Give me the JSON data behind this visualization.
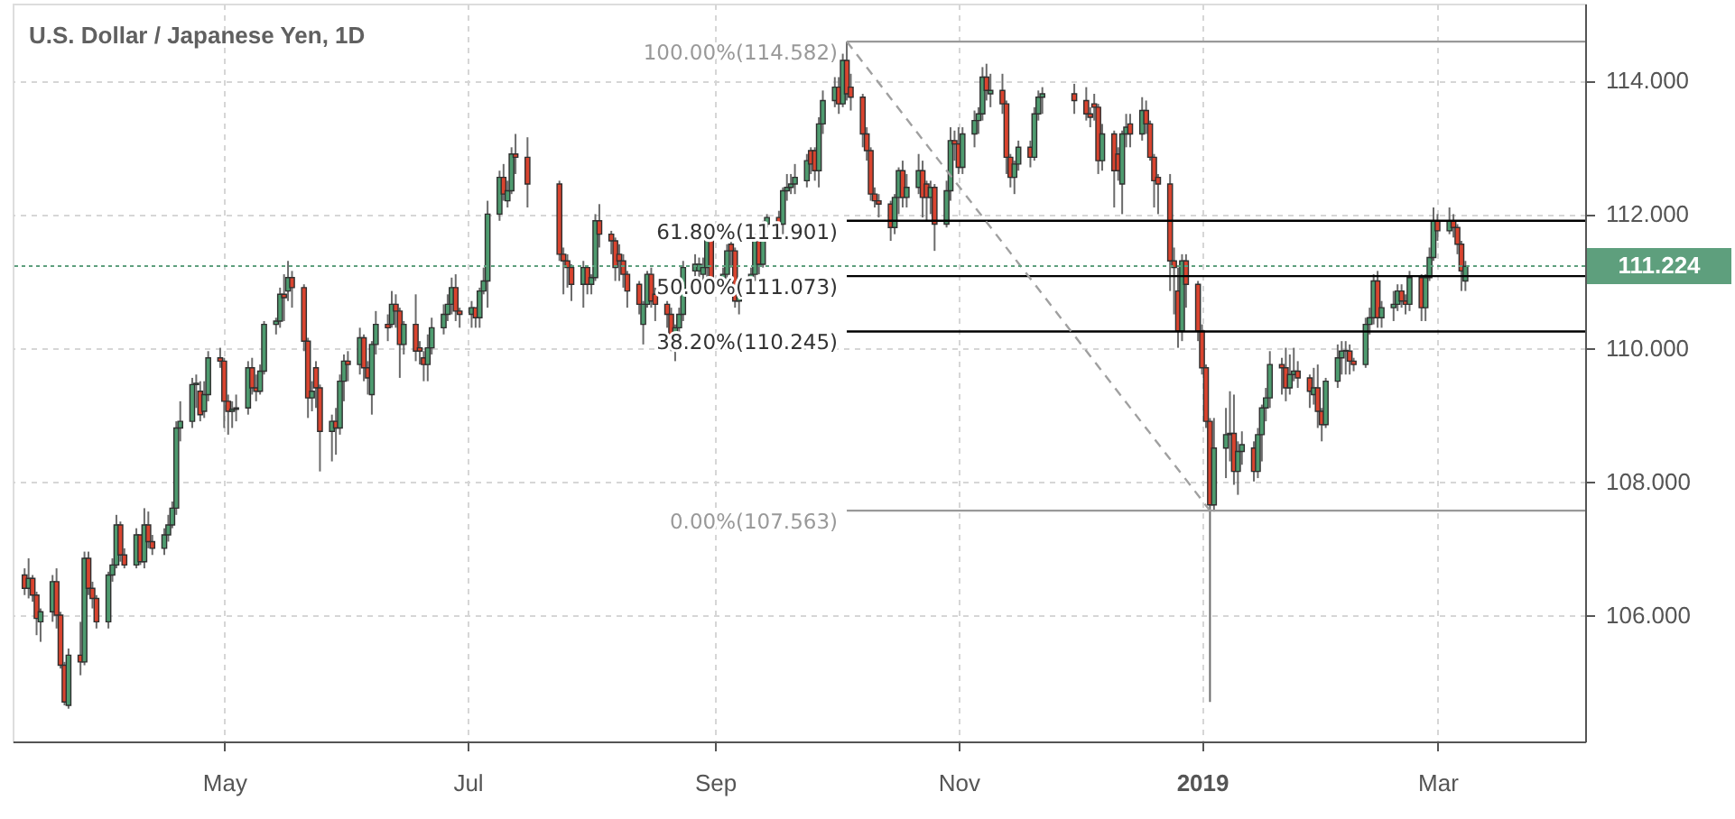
{
  "chart_data": {
    "type": "candlestick",
    "title": "U.S. Dollar / Japanese Yen, 1D",
    "xlim": [
      "2018-03-09",
      "2019-04-07"
    ],
    "xticks": [
      {
        "value": "2018-05-01",
        "label": "May"
      },
      {
        "value": "2018-07-01",
        "label": "Jul"
      },
      {
        "value": "2018-09-01",
        "label": "Sep"
      },
      {
        "value": "2018-11-01",
        "label": "Nov"
      },
      {
        "value": "2019-01-01",
        "label": "2019"
      },
      {
        "value": "2019-03-01",
        "label": "Mar"
      }
    ],
    "ylim": [
      104.11,
      115.15
    ],
    "yticks": [
      {
        "value": 106,
        "label": "106.000"
      },
      {
        "value": 108,
        "label": "108.000"
      },
      {
        "value": 110,
        "label": "110.000"
      },
      {
        "value": 112,
        "label": "112.000"
      },
      {
        "value": 114,
        "label": "114.000"
      }
    ],
    "grid": true,
    "series": [
      {
        "x": [
          "2018-03-12",
          "2018-03-13",
          "2018-03-14",
          "2018-03-15",
          "2018-03-16",
          "2018-03-19",
          "2018-03-20",
          "2018-03-21",
          "2018-03-22",
          "2018-03-23",
          "2018-03-26",
          "2018-03-27",
          "2018-03-28",
          "2018-03-29",
          "2018-03-30",
          "2018-04-02",
          "2018-04-03",
          "2018-04-04",
          "2018-04-05",
          "2018-04-06",
          "2018-04-09",
          "2018-04-10",
          "2018-04-11",
          "2018-04-12",
          "2018-04-13",
          "2018-04-16",
          "2018-04-17",
          "2018-04-18",
          "2018-04-19",
          "2018-04-20",
          "2018-04-23",
          "2018-04-24",
          "2018-04-25",
          "2018-04-26",
          "2018-04-27",
          "2018-04-30",
          "2018-05-01",
          "2018-05-02",
          "2018-05-03",
          "2018-05-04",
          "2018-05-07",
          "2018-05-08",
          "2018-05-09",
          "2018-05-10",
          "2018-05-11",
          "2018-05-14",
          "2018-05-15",
          "2018-05-16",
          "2018-05-17",
          "2018-05-18",
          "2018-05-21",
          "2018-05-22",
          "2018-05-23",
          "2018-05-24",
          "2018-05-25",
          "2018-05-28",
          "2018-05-29",
          "2018-05-30",
          "2018-05-31",
          "2018-06-01",
          "2018-06-04",
          "2018-06-05",
          "2018-06-06",
          "2018-06-07",
          "2018-06-08",
          "2018-06-11",
          "2018-06-12",
          "2018-06-13",
          "2018-06-14",
          "2018-06-15",
          "2018-06-18",
          "2018-06-19",
          "2018-06-20",
          "2018-06-21",
          "2018-06-22",
          "2018-06-25",
          "2018-06-26",
          "2018-06-27",
          "2018-06-28",
          "2018-06-29",
          "2018-07-02",
          "2018-07-03",
          "2018-07-04",
          "2018-07-05",
          "2018-07-06",
          "2018-07-09",
          "2018-07-10",
          "2018-07-11",
          "2018-07-12",
          "2018-07-13",
          "2018-07-16",
          "2018-07-24",
          "2018-07-25",
          "2018-07-26",
          "2018-07-27",
          "2018-07-30",
          "2018-07-31",
          "2018-08-01",
          "2018-08-02",
          "2018-08-03",
          "2018-08-06",
          "2018-08-07",
          "2018-08-08",
          "2018-08-09",
          "2018-08-10",
          "2018-08-13",
          "2018-08-14",
          "2018-08-15",
          "2018-08-16",
          "2018-08-17",
          "2018-08-20",
          "2018-08-21",
          "2018-08-22",
          "2018-08-23",
          "2018-08-24",
          "2018-08-27",
          "2018-08-28",
          "2018-08-29",
          "2018-08-30",
          "2018-08-31",
          "2018-09-03",
          "2018-09-04",
          "2018-09-05",
          "2018-09-06",
          "2018-09-07",
          "2018-09-10",
          "2018-09-11",
          "2018-09-12",
          "2018-09-13",
          "2018-09-14",
          "2018-09-17",
          "2018-09-18",
          "2018-09-19",
          "2018-09-20",
          "2018-09-21",
          "2018-09-24",
          "2018-09-25",
          "2018-09-26",
          "2018-09-27",
          "2018-09-28",
          "2018-10-01",
          "2018-10-02",
          "2018-10-03",
          "2018-10-04",
          "2018-10-05",
          "2018-10-08",
          "2018-10-09",
          "2018-10-10",
          "2018-10-11",
          "2018-10-12",
          "2018-10-15",
          "2018-10-16",
          "2018-10-17",
          "2018-10-18",
          "2018-10-19",
          "2018-10-22",
          "2018-10-23",
          "2018-10-24",
          "2018-10-25",
          "2018-10-26",
          "2018-10-29",
          "2018-10-30",
          "2018-10-31",
          "2018-11-01",
          "2018-11-02",
          "2018-11-05",
          "2018-11-06",
          "2018-11-07",
          "2018-11-08",
          "2018-11-09",
          "2018-11-12",
          "2018-11-13",
          "2018-11-14",
          "2018-11-15",
          "2018-11-16",
          "2018-11-19",
          "2018-11-20",
          "2018-11-21",
          "2018-11-22",
          "2018-11-30",
          "2018-12-03",
          "2018-12-04",
          "2018-12-05",
          "2018-12-06",
          "2018-12-07",
          "2018-12-10",
          "2018-12-11",
          "2018-12-12",
          "2018-12-13",
          "2018-12-14",
          "2018-12-17",
          "2018-12-18",
          "2018-12-19",
          "2018-12-20",
          "2018-12-21",
          "2018-12-24",
          "2018-12-25",
          "2018-12-26",
          "2018-12-27",
          "2018-12-28",
          "2018-12-31",
          "2019-01-01",
          "2019-01-02",
          "2019-01-03",
          "2019-01-04",
          "2019-01-07",
          "2019-01-08",
          "2019-01-09",
          "2019-01-10",
          "2019-01-11",
          "2019-01-14",
          "2019-01-15",
          "2019-01-16",
          "2019-01-17",
          "2019-01-18",
          "2019-01-21",
          "2019-01-22",
          "2019-01-23",
          "2019-01-24",
          "2019-01-25",
          "2019-01-28",
          "2019-01-29",
          "2019-01-30",
          "2019-01-31",
          "2019-02-01",
          "2019-02-04",
          "2019-02-05",
          "2019-02-06",
          "2019-02-07",
          "2019-02-08",
          "2019-02-11",
          "2019-02-12",
          "2019-02-13",
          "2019-02-14",
          "2019-02-15",
          "2019-02-18",
          "2019-02-19",
          "2019-02-20",
          "2019-02-21",
          "2019-02-22",
          "2019-02-25",
          "2019-02-26",
          "2019-02-27",
          "2019-02-28",
          "2019-03-01",
          "2019-03-04",
          "2019-03-05",
          "2019-03-06",
          "2019-03-07",
          "2019-03-08"
        ],
        "ohlc": [
          [
            106.6,
            106.7,
            106.3,
            106.4
          ],
          [
            106.4,
            106.85,
            106.25,
            106.55
          ],
          [
            106.55,
            106.6,
            106.2,
            106.3
          ],
          [
            106.3,
            106.35,
            105.7,
            105.95
          ],
          [
            105.9,
            106.1,
            105.6,
            106.05
          ],
          [
            106.05,
            106.6,
            105.9,
            106.5
          ],
          [
            106.5,
            106.7,
            105.8,
            106.0
          ],
          [
            106.0,
            106.05,
            105.2,
            105.25
          ],
          [
            105.25,
            105.3,
            104.65,
            104.7
          ],
          [
            104.65,
            105.5,
            104.6,
            105.4
          ],
          [
            105.4,
            105.9,
            105.1,
            105.3
          ],
          [
            105.3,
            106.95,
            105.25,
            106.85
          ],
          [
            106.85,
            106.95,
            106.3,
            106.4
          ],
          [
            106.4,
            106.5,
            106.1,
            106.25
          ],
          [
            106.25,
            106.3,
            105.8,
            105.9
          ],
          [
            105.9,
            106.65,
            105.8,
            106.6
          ],
          [
            106.6,
            106.85,
            106.5,
            106.75
          ],
          [
            106.75,
            107.5,
            106.7,
            107.35
          ],
          [
            107.35,
            107.4,
            106.8,
            106.9
          ],
          [
            106.9,
            107.0,
            106.7,
            106.75
          ],
          [
            106.75,
            107.3,
            106.7,
            107.2
          ],
          [
            107.2,
            107.2,
            106.75,
            106.8
          ],
          [
            106.8,
            107.6,
            106.7,
            107.35
          ],
          [
            107.35,
            107.55,
            107.0,
            107.1
          ],
          [
            107.1,
            107.2,
            106.9,
            107.0
          ],
          [
            107.0,
            107.3,
            106.9,
            107.2
          ],
          [
            107.2,
            107.5,
            107.1,
            107.35
          ],
          [
            107.35,
            107.7,
            107.3,
            107.6
          ],
          [
            107.6,
            108.9,
            107.5,
            108.8
          ],
          [
            108.8,
            109.2,
            108.6,
            108.9
          ],
          [
            108.9,
            109.55,
            108.8,
            109.45
          ],
          [
            109.45,
            109.6,
            109.1,
            109.47
          ],
          [
            109.35,
            109.5,
            108.9,
            109.0
          ],
          [
            109.05,
            109.5,
            108.95,
            109.3
          ],
          [
            109.3,
            109.95,
            109.2,
            109.85
          ],
          [
            109.85,
            110.0,
            109.7,
            109.8
          ],
          [
            109.8,
            109.85,
            108.8,
            109.2
          ],
          [
            109.2,
            109.3,
            108.7,
            109.05
          ],
          [
            109.05,
            109.2,
            108.8,
            109.08
          ],
          [
            109.08,
            109.3,
            108.9,
            109.1
          ],
          [
            109.1,
            109.8,
            109.0,
            109.7
          ],
          [
            109.7,
            109.85,
            109.3,
            109.4
          ],
          [
            109.4,
            109.6,
            109.2,
            109.35
          ],
          [
            109.35,
            109.75,
            109.3,
            109.65
          ],
          [
            109.65,
            110.4,
            109.6,
            110.35
          ],
          [
            110.35,
            110.45,
            110.2,
            110.4
          ],
          [
            110.4,
            110.9,
            110.3,
            110.8
          ],
          [
            110.8,
            111.1,
            110.4,
            110.75
          ],
          [
            110.85,
            111.3,
            110.7,
            111.05
          ],
          [
            111.05,
            111.15,
            110.6,
            110.9
          ],
          [
            110.9,
            110.95,
            109.95,
            110.1
          ],
          [
            110.1,
            110.15,
            108.95,
            109.25
          ],
          [
            109.25,
            109.5,
            109.05,
            109.35
          ],
          [
            109.7,
            109.8,
            109.1,
            109.4
          ],
          [
            109.4,
            109.45,
            108.15,
            108.75
          ],
          [
            108.75,
            109.0,
            108.3,
            108.9
          ],
          [
            108.9,
            109.1,
            108.4,
            108.8
          ],
          [
            108.8,
            109.6,
            108.7,
            109.5
          ],
          [
            109.5,
            109.9,
            109.2,
            109.8
          ],
          [
            109.8,
            109.95,
            109.5,
            109.75
          ],
          [
            109.75,
            110.3,
            109.6,
            110.15
          ],
          [
            110.15,
            110.2,
            109.5,
            109.7
          ],
          [
            109.7,
            109.8,
            109.3,
            109.55
          ],
          [
            109.3,
            110.1,
            109.0,
            110.05
          ],
          [
            110.05,
            110.55,
            109.9,
            110.35
          ],
          [
            110.35,
            110.5,
            110.1,
            110.3
          ],
          [
            110.35,
            110.85,
            110.3,
            110.65
          ],
          [
            110.65,
            110.8,
            110.3,
            110.55
          ],
          [
            110.55,
            110.6,
            109.55,
            110.05
          ],
          [
            110.05,
            110.4,
            109.9,
            110.35
          ],
          [
            110.35,
            110.8,
            109.8,
            109.95
          ],
          [
            110.0,
            110.1,
            109.75,
            109.95
          ],
          [
            109.85,
            109.95,
            109.5,
            109.75
          ],
          [
            109.75,
            110.2,
            109.5,
            110.0
          ],
          [
            110.0,
            110.45,
            109.9,
            110.3
          ],
          [
            110.3,
            110.65,
            110.2,
            110.5
          ],
          [
            110.5,
            110.8,
            110.4,
            110.65
          ],
          [
            110.65,
            111.05,
            110.5,
            110.9
          ],
          [
            110.9,
            111.1,
            110.4,
            110.55
          ],
          [
            110.55,
            110.6,
            110.3,
            110.5
          ],
          [
            110.5,
            110.7,
            110.3,
            110.6
          ],
          [
            110.6,
            110.6,
            110.3,
            110.45
          ],
          [
            110.45,
            110.9,
            110.3,
            110.85
          ],
          [
            110.85,
            111.2,
            110.8,
            111.0
          ],
          [
            111.0,
            112.2,
            110.6,
            112.0
          ],
          [
            112.0,
            112.65,
            111.9,
            112.55
          ],
          [
            112.55,
            112.75,
            112.2,
            112.3
          ],
          [
            112.2,
            112.5,
            112.1,
            112.35
          ],
          [
            112.35,
            113.0,
            112.3,
            112.9
          ],
          [
            112.9,
            113.2,
            112.6,
            112.85
          ],
          [
            112.85,
            113.15,
            112.1,
            112.45
          ],
          [
            112.45,
            112.5,
            111.3,
            111.4
          ],
          [
            111.4,
            111.5,
            110.8,
            111.3
          ],
          [
            111.3,
            111.4,
            110.9,
            111.2
          ],
          [
            111.2,
            111.25,
            110.7,
            110.95
          ],
          [
            110.95,
            111.3,
            110.6,
            111.2
          ],
          [
            111.2,
            111.2,
            110.8,
            110.95
          ],
          [
            110.95,
            111.1,
            110.8,
            111.05
          ],
          [
            111.05,
            112.0,
            111.0,
            111.9
          ],
          [
            111.9,
            112.15,
            111.5,
            111.7
          ],
          [
            111.7,
            111.75,
            111.4,
            111.6
          ],
          [
            111.6,
            111.65,
            111.0,
            111.2
          ],
          [
            111.4,
            111.55,
            111.0,
            111.3
          ],
          [
            111.3,
            111.4,
            110.9,
            111.1
          ],
          [
            111.1,
            111.15,
            110.6,
            110.85
          ],
          [
            110.95,
            111.0,
            110.5,
            110.65
          ],
          [
            110.35,
            110.7,
            110.05,
            110.65
          ],
          [
            110.65,
            111.15,
            110.6,
            111.1
          ],
          [
            111.1,
            111.2,
            110.6,
            110.7
          ],
          [
            110.8,
            110.9,
            110.4,
            110.65
          ],
          [
            110.65,
            110.7,
            110.3,
            110.5
          ],
          [
            110.5,
            110.6,
            109.95,
            110.05
          ],
          [
            110.05,
            110.35,
            109.8,
            110.3
          ],
          [
            110.3,
            110.6,
            110.2,
            110.5
          ],
          [
            110.5,
            111.3,
            110.4,
            111.2
          ],
          [
            111.15,
            111.4,
            111.0,
            111.25
          ],
          [
            111.15,
            111.35,
            111.0,
            111.25
          ],
          [
            111.1,
            111.35,
            111.0,
            111.2
          ],
          [
            111.2,
            111.75,
            111.0,
            111.7
          ],
          [
            111.7,
            111.75,
            110.8,
            111.0
          ],
          [
            111.0,
            111.2,
            110.85,
            111.1
          ],
          [
            111.1,
            111.55,
            111.0,
            111.45
          ],
          [
            111.55,
            111.6,
            111.2,
            111.45
          ],
          [
            111.45,
            111.5,
            110.6,
            110.7
          ],
          [
            110.7,
            111.05,
            110.5,
            111.0
          ],
          [
            111.0,
            111.2,
            110.9,
            111.1
          ],
          [
            111.1,
            111.7,
            111.0,
            111.6
          ],
          [
            111.6,
            111.65,
            111.1,
            111.25
          ],
          [
            111.25,
            111.9,
            111.2,
            111.85
          ],
          [
            111.85,
            112.0,
            111.8,
            111.95
          ],
          [
            111.95,
            112.05,
            111.7,
            111.85
          ],
          [
            111.85,
            112.4,
            111.7,
            112.35
          ],
          [
            112.35,
            112.6,
            112.2,
            112.4
          ],
          [
            112.4,
            112.6,
            112.3,
            112.45
          ],
          [
            112.45,
            112.75,
            112.3,
            112.55
          ],
          [
            112.5,
            112.9,
            112.4,
            112.8
          ],
          [
            112.95,
            113.0,
            112.6,
            112.75
          ],
          [
            112.95,
            113.0,
            112.5,
            112.65
          ],
          [
            112.65,
            113.45,
            112.4,
            113.35
          ],
          [
            113.35,
            113.85,
            113.2,
            113.7
          ],
          [
            113.7,
            114.05,
            113.6,
            113.9
          ],
          [
            113.9,
            114.05,
            113.5,
            113.65
          ],
          [
            113.65,
            114.4,
            113.6,
            114.3
          ],
          [
            114.3,
            114.582,
            113.7,
            113.8
          ],
          [
            113.9,
            114.1,
            113.55,
            113.75
          ],
          [
            113.75,
            113.8,
            113.0,
            113.2
          ],
          [
            113.2,
            113.3,
            112.8,
            112.95
          ],
          [
            112.95,
            113.0,
            112.2,
            112.3
          ],
          [
            112.3,
            112.4,
            112.1,
            112.2
          ],
          [
            112.2,
            112.3,
            111.95,
            112.15
          ],
          [
            112.15,
            112.2,
            111.6,
            111.8
          ],
          [
            111.8,
            112.3,
            111.7,
            112.25
          ],
          [
            112.25,
            112.7,
            112.0,
            112.65
          ],
          [
            112.65,
            112.8,
            112.1,
            112.25
          ],
          [
            112.25,
            112.6,
            112.1,
            112.4
          ],
          [
            112.4,
            112.9,
            112.3,
            112.65
          ],
          [
            112.65,
            112.8,
            111.95,
            112.25
          ],
          [
            112.45,
            112.5,
            111.9,
            112.25
          ],
          [
            112.25,
            112.5,
            112.0,
            112.4
          ],
          [
            112.4,
            112.45,
            111.45,
            111.85
          ],
          [
            111.85,
            112.5,
            111.8,
            112.35
          ],
          [
            112.35,
            113.3,
            112.2,
            113.1
          ],
          [
            113.1,
            113.25,
            112.8,
            113.05
          ],
          [
            113.05,
            113.3,
            112.6,
            112.7
          ],
          [
            112.7,
            113.3,
            112.6,
            113.2
          ],
          [
            113.2,
            113.55,
            113.0,
            113.4
          ],
          [
            113.4,
            113.6,
            113.2,
            113.5
          ],
          [
            113.5,
            114.2,
            113.4,
            114.05
          ],
          [
            114.05,
            114.25,
            113.7,
            113.85
          ],
          [
            113.8,
            114.1,
            113.6,
            113.85
          ],
          [
            113.85,
            114.1,
            113.5,
            113.65
          ],
          [
            113.65,
            113.7,
            112.6,
            112.85
          ],
          [
            112.85,
            112.9,
            112.4,
            112.55
          ],
          [
            112.55,
            112.8,
            112.3,
            112.75
          ],
          [
            112.75,
            113.1,
            112.65,
            113.0
          ],
          [
            113.0,
            113.1,
            112.7,
            112.85
          ],
          [
            112.85,
            113.6,
            112.8,
            113.5
          ],
          [
            113.5,
            113.85,
            113.4,
            113.75
          ],
          [
            113.75,
            113.9,
            113.5,
            113.8
          ],
          [
            113.8,
            113.95,
            113.5,
            113.7
          ],
          [
            113.7,
            113.9,
            113.4,
            113.5
          ],
          [
            113.5,
            113.6,
            113.3,
            113.45
          ],
          [
            113.65,
            113.8,
            113.4,
            113.6
          ],
          [
            113.6,
            113.65,
            112.6,
            112.8
          ],
          [
            112.8,
            113.35,
            112.65,
            113.2
          ],
          [
            113.2,
            113.25,
            112.1,
            112.65
          ],
          [
            112.9,
            113.0,
            112.5,
            112.65
          ],
          [
            112.45,
            113.25,
            112.0,
            113.2
          ],
          [
            113.2,
            113.5,
            113.0,
            113.3
          ],
          [
            113.35,
            113.5,
            113.0,
            113.2
          ],
          [
            113.2,
            113.75,
            113.1,
            113.55
          ],
          [
            113.55,
            113.7,
            113.2,
            113.35
          ],
          [
            113.35,
            113.4,
            112.8,
            112.85
          ],
          [
            112.85,
            112.9,
            112.1,
            112.5
          ],
          [
            112.55,
            112.6,
            112.0,
            112.45
          ],
          [
            112.45,
            112.6,
            110.85,
            111.3
          ],
          [
            111.3,
            111.5,
            110.5,
            111.2
          ],
          [
            110.85,
            111.2,
            110.0,
            110.25
          ],
          [
            110.25,
            111.4,
            110.1,
            111.3
          ],
          [
            111.3,
            111.4,
            110.6,
            110.95
          ],
          [
            110.95,
            111.0,
            110.1,
            110.25
          ],
          [
            110.25,
            110.35,
            109.6,
            109.7
          ],
          [
            109.7,
            109.75,
            108.8,
            108.9
          ],
          [
            108.9,
            108.95,
            104.7,
            107.65
          ],
          [
            107.65,
            108.95,
            107.55,
            108.5
          ],
          [
            108.5,
            109.1,
            108.05,
            108.7
          ],
          [
            108.7,
            109.35,
            108.3,
            108.72
          ],
          [
            108.72,
            109.3,
            107.95,
            108.15
          ],
          [
            108.15,
            108.6,
            107.8,
            108.45
          ],
          [
            108.45,
            108.75,
            108.25,
            108.55
          ],
          [
            108.5,
            108.6,
            108.0,
            108.15
          ],
          [
            108.15,
            108.8,
            108.05,
            108.7
          ],
          [
            108.7,
            109.15,
            108.3,
            109.1
          ],
          [
            109.1,
            109.4,
            108.9,
            109.25
          ],
          [
            109.25,
            109.95,
            109.1,
            109.75
          ],
          [
            109.75,
            109.85,
            109.3,
            109.7
          ],
          [
            109.7,
            110.0,
            109.2,
            109.4
          ],
          [
            109.4,
            109.9,
            109.3,
            109.6
          ],
          [
            109.6,
            110.0,
            109.5,
            109.65
          ],
          [
            109.65,
            109.8,
            109.4,
            109.55
          ],
          [
            109.55,
            109.6,
            109.1,
            109.35
          ],
          [
            109.3,
            109.7,
            109.15,
            109.4
          ],
          [
            109.4,
            109.75,
            108.8,
            109.05
          ],
          [
            109.05,
            109.1,
            108.6,
            108.85
          ],
          [
            108.85,
            109.55,
            108.8,
            109.5
          ],
          [
            109.5,
            110.05,
            109.4,
            109.85
          ],
          [
            109.85,
            110.1,
            109.6,
            109.95
          ],
          [
            109.95,
            110.1,
            109.6,
            109.96
          ],
          [
            109.95,
            110.05,
            109.6,
            109.8
          ],
          [
            109.8,
            109.85,
            109.65,
            109.75
          ],
          [
            109.75,
            110.45,
            109.7,
            110.35
          ],
          [
            110.35,
            110.6,
            110.2,
            110.45
          ],
          [
            110.45,
            111.1,
            110.35,
            111.0
          ],
          [
            111.0,
            111.15,
            110.3,
            110.45
          ],
          [
            110.45,
            110.7,
            110.3,
            110.6
          ],
          [
            110.6,
            110.85,
            110.4,
            110.65
          ],
          [
            110.65,
            110.95,
            110.55,
            110.85
          ],
          [
            110.85,
            110.95,
            110.6,
            110.7
          ],
          [
            110.7,
            110.8,
            110.5,
            110.65
          ],
          [
            110.65,
            111.15,
            110.55,
            111.05
          ],
          [
            111.05,
            111.1,
            110.4,
            110.6
          ],
          [
            110.6,
            111.1,
            110.4,
            111.05
          ],
          [
            111.05,
            111.5,
            111.0,
            111.35
          ],
          [
            111.35,
            112.1,
            111.3,
            111.9
          ],
          [
            111.9,
            112.0,
            111.6,
            111.75
          ],
          [
            111.75,
            112.1,
            111.7,
            111.9
          ],
          [
            111.9,
            112.0,
            111.65,
            111.8
          ],
          [
            111.8,
            111.85,
            111.4,
            111.55
          ],
          [
            111.55,
            111.6,
            110.85,
            111.15
          ],
          [
            111.0,
            111.3,
            110.85,
            111.22
          ]
        ],
        "colors": [
          "#d9442f",
          "#4e9b6f",
          "#d9442f",
          "#d9442f",
          "#4e9b6f",
          "#4e9b6f",
          "#d9442f",
          "#d9442f",
          "#d9442f",
          "#4e9b6f",
          "#d9442f",
          "#4e9b6f",
          "#d9442f",
          "#d9442f",
          "#d9442f",
          "#4e9b6f",
          "#4e9b6f",
          "#4e9b6f",
          "#d9442f",
          "#d9442f",
          "#4e9b6f",
          "#d9442f",
          "#4e9b6f",
          "#d9442f",
          "#d9442f",
          "#4e9b6f",
          "#4e9b6f",
          "#4e9b6f",
          "#4e9b6f",
          "#4e9b6f",
          "#4e9b6f",
          "#4e9b6f",
          "#d9442f",
          "#4e9b6f",
          "#4e9b6f",
          "#d9442f",
          "#d9442f",
          "#d9442f",
          "#4e9b6f",
          "#4e9b6f",
          "#4e9b6f",
          "#d9442f",
          "#d9442f",
          "#4e9b6f",
          "#4e9b6f",
          "#4e9b6f",
          "#4e9b6f",
          "#d9442f",
          "#4e9b6f",
          "#d9442f",
          "#d9442f",
          "#d9442f",
          "#4e9b6f",
          "#d9442f",
          "#d9442f",
          "#4e9b6f",
          "#d9442f",
          "#4e9b6f",
          "#4e9b6f",
          "#d9442f",
          "#4e9b6f",
          "#d9442f",
          "#d9442f",
          "#4e9b6f",
          "#4e9b6f",
          "#d9442f",
          "#4e9b6f",
          "#d9442f",
          "#d9442f",
          "#4e9b6f",
          "#d9442f",
          "#d9442f",
          "#d9442f",
          "#4e9b6f",
          "#4e9b6f",
          "#4e9b6f",
          "#4e9b6f",
          "#4e9b6f",
          "#d9442f",
          "#d9442f",
          "#4e9b6f",
          "#d9442f",
          "#4e9b6f",
          "#4e9b6f",
          "#4e9b6f",
          "#4e9b6f",
          "#d9442f",
          "#4e9b6f",
          "#4e9b6f",
          "#d9442f",
          "#d9442f",
          "#d9442f",
          "#d9442f",
          "#d9442f",
          "#d9442f",
          "#4e9b6f",
          "#d9442f",
          "#4e9b6f",
          "#4e9b6f",
          "#d9442f",
          "#d9442f",
          "#d9442f",
          "#d9442f",
          "#d9442f",
          "#d9442f",
          "#d9442f",
          "#4e9b6f",
          "#4e9b6f",
          "#d9442f",
          "#d9442f",
          "#d9442f",
          "#d9442f",
          "#4e9b6f",
          "#4e9b6f",
          "#4e9b6f",
          "#4e9b6f",
          "#4e9b6f",
          "#4e9b6f",
          "#4e9b6f",
          "#d9442f",
          "#4e9b6f",
          "#4e9b6f",
          "#d9442f",
          "#d9442f",
          "#4e9b6f",
          "#4e9b6f",
          "#4e9b6f",
          "#d9442f",
          "#4e9b6f",
          "#4e9b6f",
          "#d9442f",
          "#4e9b6f",
          "#4e9b6f",
          "#4e9b6f",
          "#4e9b6f",
          "#4e9b6f",
          "#d9442f",
          "#d9442f",
          "#4e9b6f",
          "#4e9b6f",
          "#4e9b6f",
          "#d9442f",
          "#4e9b6f",
          "#d9442f",
          "#d9442f",
          "#d9442f",
          "#d9442f",
          "#d9442f",
          "#d9442f",
          "#d9442f",
          "#d9442f",
          "#4e9b6f",
          "#4e9b6f",
          "#d9442f",
          "#4e9b6f",
          "#4e9b6f",
          "#d9442f",
          "#d9442f",
          "#4e9b6f",
          "#d9442f",
          "#4e9b6f",
          "#4e9b6f",
          "#d9442f",
          "#d9442f",
          "#4e9b6f",
          "#4e9b6f",
          "#4e9b6f",
          "#4e9b6f",
          "#d9442f",
          "#4e9b6f",
          "#d9442f",
          "#d9442f",
          "#d9442f",
          "#4e9b6f",
          "#4e9b6f",
          "#d9442f",
          "#4e9b6f",
          "#4e9b6f",
          "#4e9b6f",
          "#d9442f",
          "#d9442f",
          "#d9442f",
          "#d9442f",
          "#d9442f",
          "#4e9b6f",
          "#d9442f",
          "#d9442f",
          "#4e9b6f",
          "#4e9b6f",
          "#d9442f",
          "#4e9b6f",
          "#d9442f",
          "#d9442f",
          "#d9442f",
          "#d9442f",
          "#d9442f",
          "#d9442f",
          "#d9442f",
          "#4e9b6f",
          "#d9442f",
          "#d9442f",
          "#d9442f",
          "#d9442f",
          "#d9442f",
          "#4e9b6f",
          "#4e9b6f",
          "#4e9b6f",
          "#d9442f",
          "#4e9b6f",
          "#4e9b6f",
          "#d9442f",
          "#4e9b6f",
          "#4e9b6f",
          "#4e9b6f",
          "#4e9b6f",
          "#d9442f",
          "#d9442f",
          "#4e9b6f",
          "#4e9b6f",
          "#d9442f",
          "#d9442f",
          "#4e9b6f",
          "#d9442f",
          "#d9442f",
          "#4e9b6f",
          "#4e9b6f",
          "#4e9b6f",
          "#4e9b6f",
          "#d9442f",
          "#d9442f",
          "#4e9b6f",
          "#4e9b6f",
          "#4e9b6f",
          "#d9442f",
          "#4e9b6f",
          "#4e9b6f",
          "#4e9b6f",
          "#d9442f",
          "#d9442f",
          "#4e9b6f",
          "#d9442f",
          "#4e9b6f",
          "#4e9b6f",
          "#4e9b6f",
          "#d9442f",
          "#4e9b6f",
          "#d9442f",
          "#d9442f",
          "#d9442f",
          "#4e9b6f"
        ]
      },
      {
        "type": "line",
        "color": "#999999",
        "line_style": "solid",
        "x": [
          "2018-10-04",
          "2019-04-07"
        ],
        "values": [
          114.582,
          114.582
        ]
      },
      {
        "type": "line",
        "color": "#000000",
        "line_style": "solid",
        "x": [
          "2018-10-04",
          "2019-04-07"
        ],
        "values": [
          111.901,
          111.901
        ]
      },
      {
        "type": "line",
        "color": "#000000",
        "line_style": "solid",
        "x": [
          "2018-10-04",
          "2019-04-07"
        ],
        "values": [
          111.073,
          111.073
        ]
      },
      {
        "type": "line",
        "color": "#000000",
        "line_style": "solid",
        "x": [
          "2018-10-04",
          "2019-04-07"
        ],
        "values": [
          110.245,
          110.245
        ]
      },
      {
        "type": "line",
        "color": "#999999",
        "line_style": "solid",
        "x": [
          "2018-10-04",
          "2019-04-07"
        ],
        "values": [
          107.563,
          107.563
        ]
      },
      {
        "type": "line",
        "color": "#a0a0a0",
        "line_style": "dashed",
        "x": [
          "2018-10-04",
          "2019-01-03"
        ],
        "values": [
          114.582,
          107.563
        ]
      }
    ],
    "annotations": [
      {
        "text": "100.00%(114.582)",
        "x": "2018-10-04",
        "y": 114.582
      },
      {
        "text": "61.80%(111.901)",
        "x": "2018-10-04",
        "y": 111.901
      },
      {
        "text": "50.00%(111.073)",
        "x": "2018-10-04",
        "y": 111.073
      },
      {
        "text": "38.20%(110.245)",
        "x": "2018-10-04",
        "y": 110.245
      },
      {
        "text": "0.00%(107.563)",
        "x": "2018-10-04",
        "y": 107.563
      }
    ],
    "ref_lines": [
      {
        "axis": "y",
        "value": 111.224,
        "label": "111.224",
        "color": "#5e9f7d",
        "line_style": "dotted"
      }
    ]
  }
}
